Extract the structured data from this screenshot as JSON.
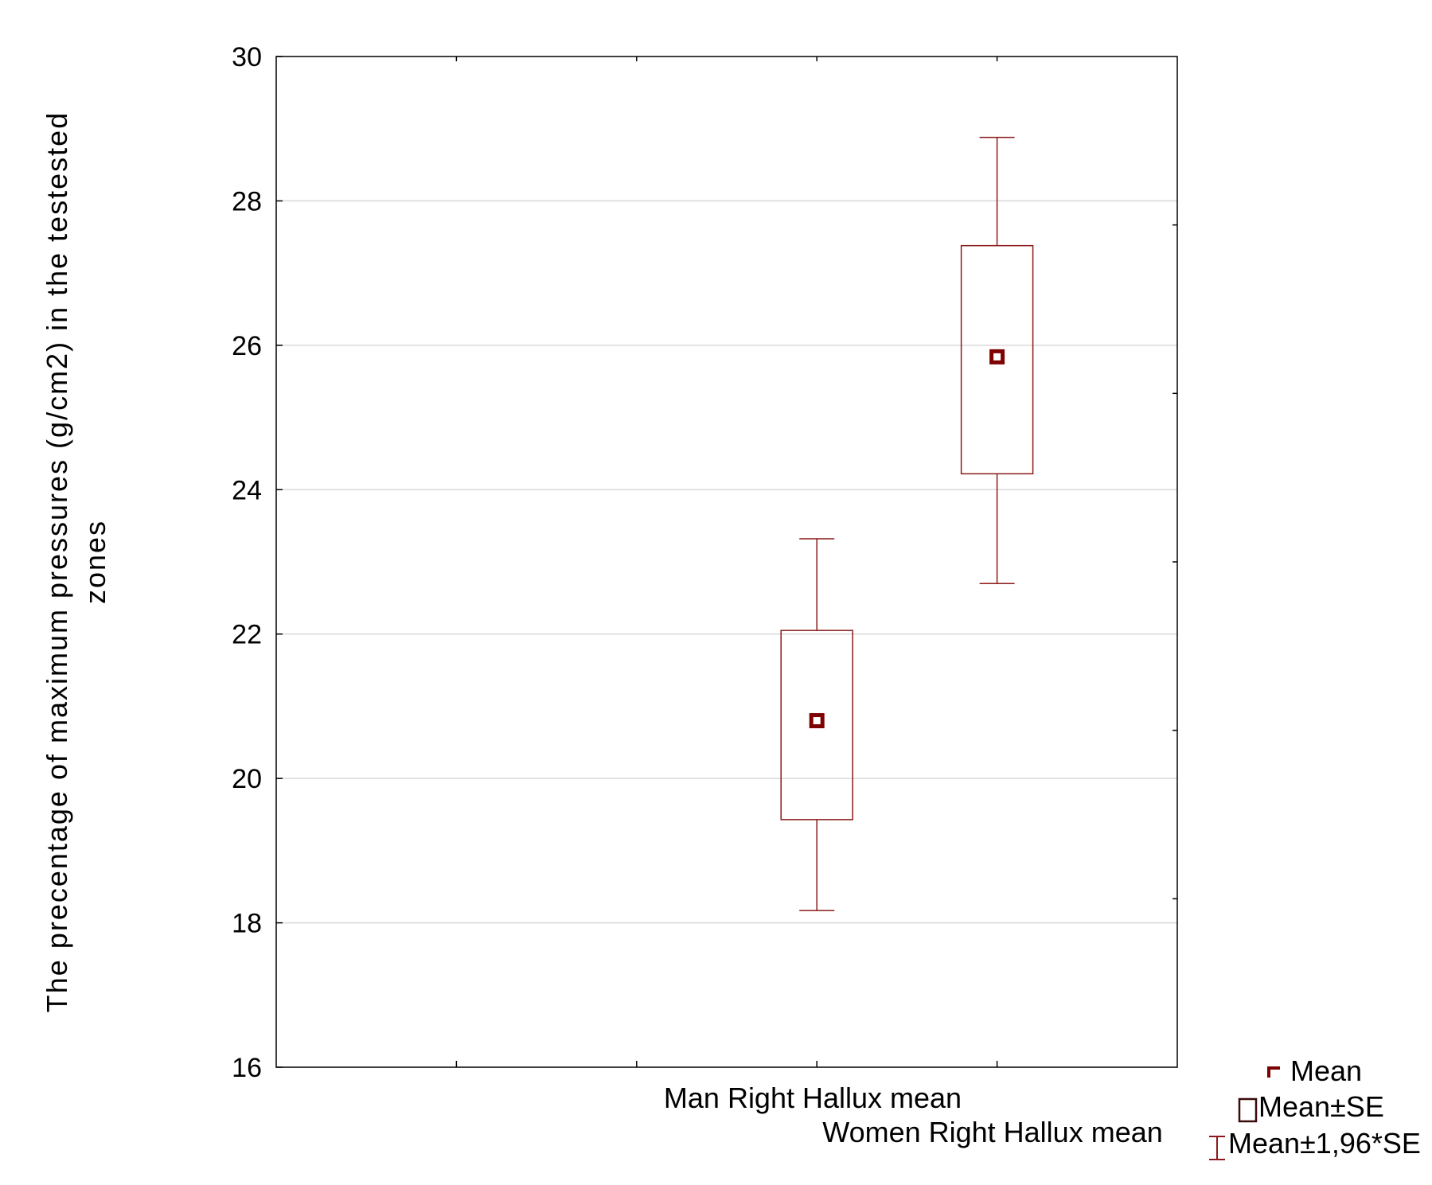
{
  "chart_data": {
    "type": "box",
    "ylabel_line1": "The precentage of maximum pressures (g/cm2) in the testested",
    "ylabel_line2": "zones",
    "ylim": [
      16,
      30
    ],
    "yticks": [
      16,
      18,
      20,
      22,
      24,
      26,
      28,
      30
    ],
    "grid": true,
    "categories": [
      "Man Right Hallux mean",
      "Women Right Hallux mean"
    ],
    "series": [
      {
        "category": "Man Right Hallux mean",
        "mean": 20.8,
        "se_low": 19.43,
        "se_high": 22.05,
        "ci_low": 18.17,
        "ci_high": 23.32
      },
      {
        "category": "Women Right Hallux mean",
        "mean": 25.84,
        "se_low": 24.22,
        "se_high": 27.38,
        "ci_low": 22.7,
        "ci_high": 28.88
      }
    ],
    "legend": {
      "position": "bottom-right",
      "items": [
        "Mean",
        "Mean±SE",
        "Mean±1,96*SE"
      ]
    },
    "colors": {
      "marker": "#7f0000",
      "line": "#8b1a1a",
      "grid": "#d9d9d9",
      "axis": "#000000"
    }
  }
}
